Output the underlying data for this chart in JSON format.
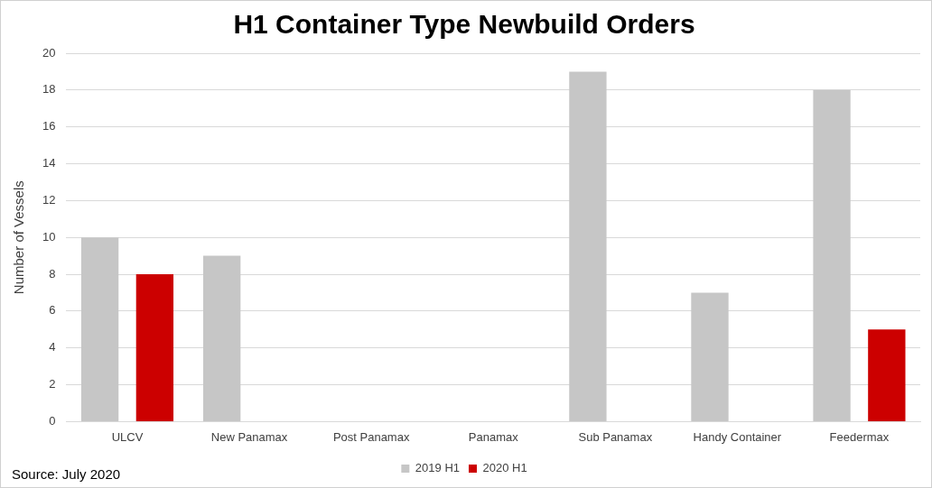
{
  "chart_data": {
    "type": "bar",
    "title": "H1 Container Type Newbuild Orders",
    "ylabel": "Number of Vessels",
    "categories": [
      "ULCV",
      "New Panamax",
      "Post Panamax",
      "Panamax",
      "Sub Panamax",
      "Handy Container",
      "Feedermax"
    ],
    "series": [
      {
        "name": "2019 H1",
        "color": "#c6c6c6",
        "values": [
          10,
          9,
          0,
          0,
          19,
          7,
          18
        ]
      },
      {
        "name": "2020 H1",
        "color": "#cc0000",
        "values": [
          8,
          0,
          0,
          0,
          0,
          0,
          5
        ]
      }
    ],
    "ylim": [
      0,
      20
    ],
    "yticks": [
      0,
      2,
      4,
      6,
      8,
      10,
      12,
      14,
      16,
      18,
      20
    ],
    "grid": "y",
    "legend": "bottom",
    "annotations": [
      "Source: July 2020"
    ]
  }
}
